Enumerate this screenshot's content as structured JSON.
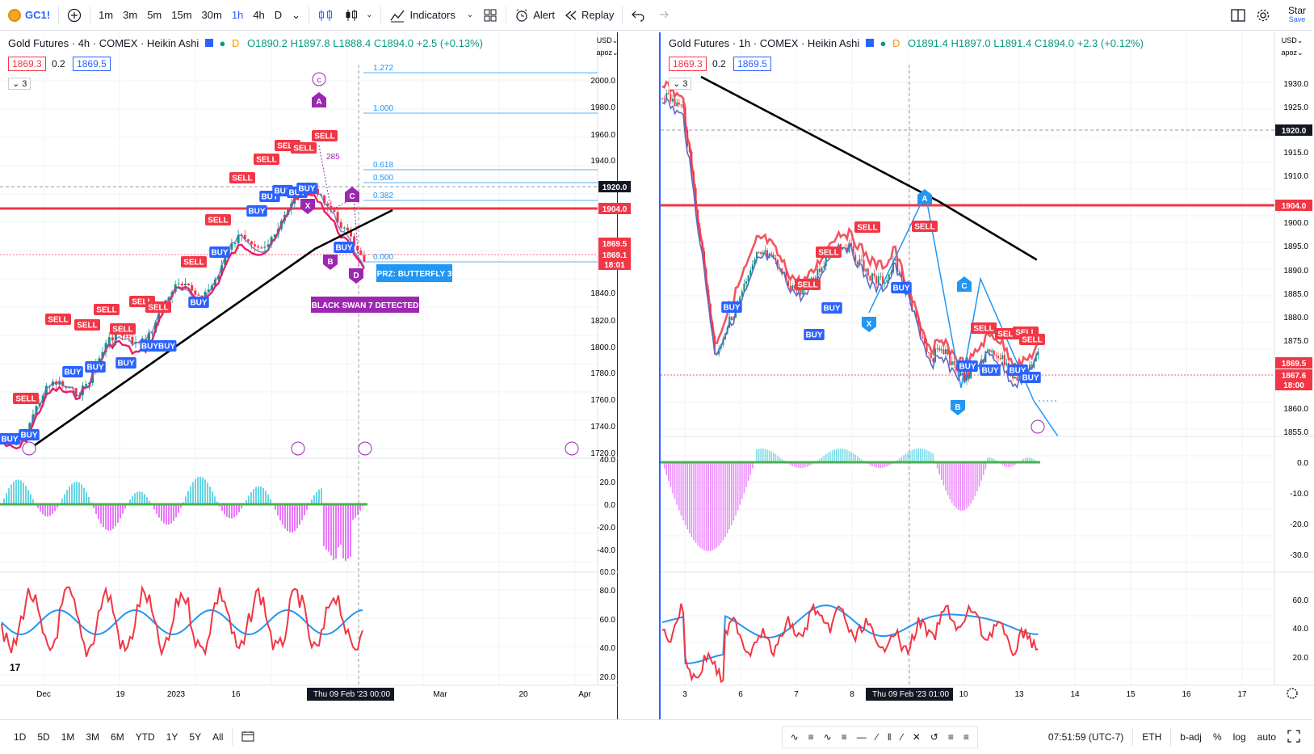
{
  "toolbar": {
    "symbol": "GC1!",
    "intervals": [
      "1m",
      "3m",
      "5m",
      "15m",
      "30m",
      "1h",
      "4h",
      "D"
    ],
    "active_interval": "1h",
    "indicators_label": "Indicators",
    "alert_label": "Alert",
    "replay_label": "Replay",
    "right_label_top": "Star",
    "right_label_bottom": "Save"
  },
  "left_chart": {
    "title": "Gold Futures · 4h · COMEX · Heikin Ashi",
    "ohlc": "O1890.2 H1897.8 L1888.4 C1894.0 +2.5 (+0.13%)",
    "pill_low": "1869.3",
    "pill_mid": "0.2",
    "pill_high": "1869.5",
    "collapse_count": "3",
    "fib_levels": [
      "1.272",
      "1.000",
      "0.618",
      "0.500",
      "0.382",
      "0.000"
    ],
    "fib_hidden_label": "285",
    "pattern_points": [
      "A",
      "B",
      "C",
      "D",
      "X"
    ],
    "cycle_label": "c",
    "prz_label": "PRZ: BUTTERFLY 3",
    "swan_label": "BLACK SWAN 7 DETECTED",
    "signal_sell": "SELL",
    "signal_buy": "BUY",
    "signal_buybuy": "BUYBUY",
    "price_scale_currency": "USD",
    "price_scale_mode": "apoz",
    "price_scale": [
      "2000.0",
      "1980.0",
      "1960.0",
      "1940.0",
      "1840.0",
      "1820.0",
      "1800.0",
      "1780.0",
      "1760.0",
      "1740.0",
      "1720.0"
    ],
    "price_tags": [
      {
        "label": "1920.0",
        "color": "#131722"
      },
      {
        "label": "1904.0",
        "color": "#f23645"
      },
      {
        "label": "1869.5",
        "color": "#f23645"
      },
      {
        "label": "1869.1",
        "color": "#f23645"
      },
      {
        "label": "18:01",
        "color": "#f23645"
      }
    ],
    "osc_scale": [
      "40.0",
      "20.0",
      "0.0",
      "-20.0",
      "-40.0",
      "-60.0"
    ],
    "rsi_scale": [
      "80.0",
      "60.0",
      "40.0",
      "20.0"
    ],
    "time_labels": [
      "Dec",
      "19",
      "2023",
      "16",
      "Mar",
      "20",
      "Apr"
    ],
    "time_current": "Thu 09 Feb '23",
    "time_current_clock": "00:00",
    "tv_logo": "17"
  },
  "right_chart": {
    "title": "Gold Futures · 1h · COMEX · Heikin Ashi",
    "ohlc": "O1891.4 H1897.0 L1891.4 C1894.0 +2.3 (+0.12%)",
    "pill_low": "1869.3",
    "pill_mid": "0.2",
    "pill_high": "1869.5",
    "collapse_count": "3",
    "pattern_points": [
      "A",
      "B",
      "C",
      "X"
    ],
    "signal_sell": "SELL",
    "signal_buy": "BUY",
    "price_scale_currency": "USD",
    "price_scale_mode": "apoz",
    "price_scale": [
      "1930.0",
      "1925.0",
      "1915.0",
      "1910.0",
      "1900.0",
      "1895.0",
      "1890.0",
      "1885.0",
      "1880.0",
      "1875.0",
      "1860.0",
      "1855.0"
    ],
    "price_tags": [
      {
        "label": "1920.0",
        "color": "#131722"
      },
      {
        "label": "1904.0",
        "color": "#f23645"
      },
      {
        "label": "1869.5",
        "color": "#f23645"
      },
      {
        "label": "1867.6",
        "color": "#f23645"
      },
      {
        "label": "18:00",
        "color": "#f23645"
      }
    ],
    "osc_scale": [
      "0.0",
      "-10.0",
      "-20.0",
      "-30.0"
    ],
    "rsi_scale": [
      "60.0",
      "40.0",
      "20.0"
    ],
    "time_labels": [
      "3",
      "6",
      "7",
      "8",
      "10",
      "13",
      "14",
      "15",
      "16",
      "17"
    ],
    "time_current": "Thu 09 Feb '23",
    "time_current_clock": "01:00"
  },
  "bottombar": {
    "ranges": [
      "1D",
      "5D",
      "1M",
      "3M",
      "6M",
      "YTD",
      "1Y",
      "5Y",
      "All"
    ],
    "clock": "07:51:59 (UTC-7)",
    "session": "ETH",
    "adj": "b-adj",
    "percent": "%",
    "log": "log",
    "auto": "auto"
  },
  "colors": {
    "accent": "#2962ff",
    "sell": "#f23645",
    "buy": "#2962ff",
    "pattern": "#9c27b0",
    "osc_pos": "#26c6da",
    "osc_neg": "#e040fb"
  }
}
